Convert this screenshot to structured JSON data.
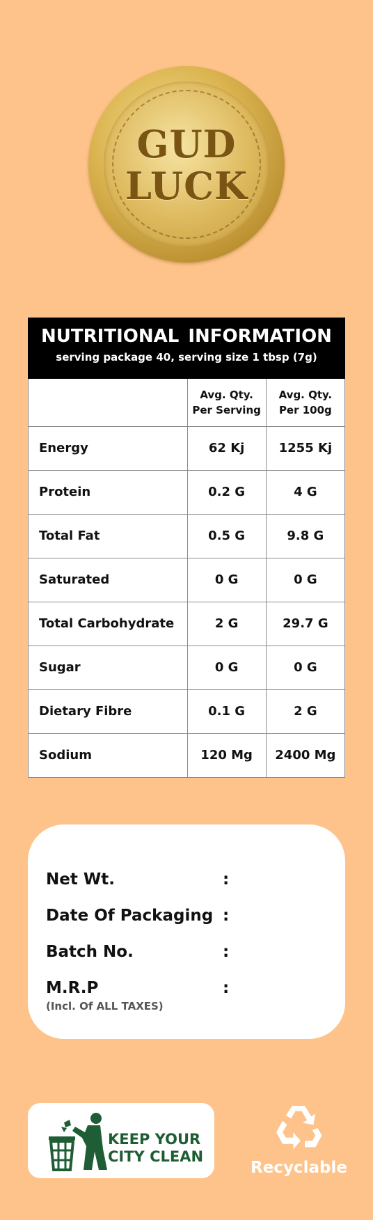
{
  "brand": {
    "line1": "GUD",
    "line2": "LUCK"
  },
  "nutrition": {
    "title": "NUTRITIONAL INFORMATION",
    "subtitle": "serving package 40, serving size 1 tbsp (7g)",
    "col_per_serving_1": "Avg. Qty.",
    "col_per_serving_2": "Per Serving",
    "col_per_100g_1": "Avg. Qty.",
    "col_per_100g_2": "Per 100g",
    "rows": [
      {
        "label": "Energy",
        "per_serving": "62 Kj",
        "per_100g": "1255 Kj"
      },
      {
        "label": "Protein",
        "per_serving": "0.2 G",
        "per_100g": "4 G"
      },
      {
        "label": "Total Fat",
        "per_serving": "0.5 G",
        "per_100g": "9.8 G"
      },
      {
        "label": "Saturated",
        "per_serving": "0 G",
        "per_100g": "0 G"
      },
      {
        "label": "Total Carbohydrate",
        "per_serving": "2 G",
        "per_100g": "29.7 G"
      },
      {
        "label": "Sugar",
        "per_serving": "0 G",
        "per_100g": "0 G"
      },
      {
        "label": "Dietary Fibre",
        "per_serving": "0.1 G",
        "per_100g": "2 G"
      },
      {
        "label": "Sodium",
        "per_serving": "120 Mg",
        "per_100g": "2400 Mg"
      }
    ]
  },
  "info": {
    "net_wt": "Net Wt.",
    "date_of_packaging": "Date Of Packaging",
    "batch_no": "Batch No.",
    "mrp": "M.R.P",
    "mrp_note": "(Incl. Of ALL TAXES)",
    "colon": ":"
  },
  "badges": {
    "keep_clean_line1": "KEEP YOUR",
    "keep_clean_line2": "CITY CLEAN",
    "recyclable": "Recyclable",
    "clean_icon": "trash-bin-person-icon",
    "recycle_icon": "recycle-icon"
  },
  "colors": {
    "background": "#FEC38A",
    "header_black": "#000000",
    "clean_green": "#1F5E35",
    "gold": "#D9B24E"
  }
}
